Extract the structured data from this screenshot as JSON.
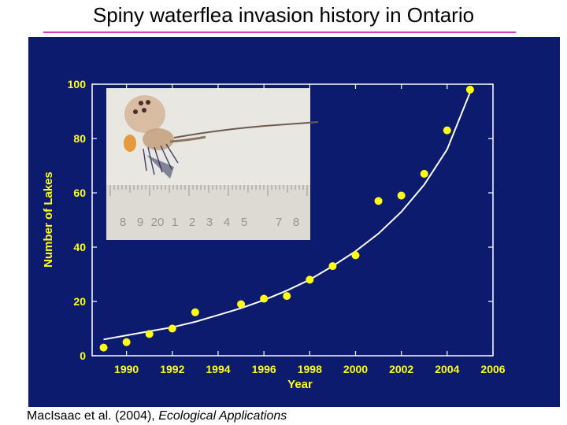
{
  "slide": {
    "title": "Spiny waterflea invasion history in Ontario",
    "title_rule_color": "#d63ac6",
    "caption_prefix": "MacIsaac et al. (2004), ",
    "caption_journal": "Ecological Applications"
  },
  "photo": {
    "subject": "spiny waterflea specimen beside ruler",
    "ruler_numbers": [
      "8",
      "9",
      "20",
      "1",
      "2",
      "3",
      "4",
      "5",
      "",
      "7",
      "8"
    ]
  },
  "chart_data": {
    "type": "scatter",
    "xlabel": "Year",
    "ylabel": "Number of Lakes",
    "xlim": [
      1988.5,
      2006
    ],
    "ylim": [
      0,
      100
    ],
    "xticks": [
      1990,
      1992,
      1994,
      1996,
      1998,
      2000,
      2002,
      2004,
      2006
    ],
    "yticks": [
      0,
      20,
      40,
      60,
      80,
      100
    ],
    "grid": false,
    "colors": {
      "background": "#0c1b6e",
      "points": "#ffff1a",
      "fit_line": "#ffffff",
      "axes": "#ffffff"
    },
    "series": [
      {
        "x": [
          1989,
          1990,
          1991,
          1992,
          1993,
          1995,
          1996,
          1997,
          1998,
          1999,
          2000,
          2001,
          2002,
          2003,
          2004,
          2005
        ],
        "values": [
          3,
          5,
          8,
          10,
          16,
          19,
          21,
          22,
          28,
          33,
          37,
          57,
          59,
          67,
          83,
          98
        ]
      }
    ],
    "fit_curve": {
      "x": [
        1989,
        1990,
        1991,
        1992,
        1993,
        1994,
        1995,
        1996,
        1997,
        1998,
        1999,
        2000,
        2001,
        2002,
        2003,
        2004,
        2005
      ],
      "values": [
        6,
        7.5,
        9,
        10.5,
        12.5,
        15,
        17.5,
        20.5,
        24,
        28,
        33,
        38.5,
        45,
        53,
        63,
        76,
        97
      ]
    }
  }
}
